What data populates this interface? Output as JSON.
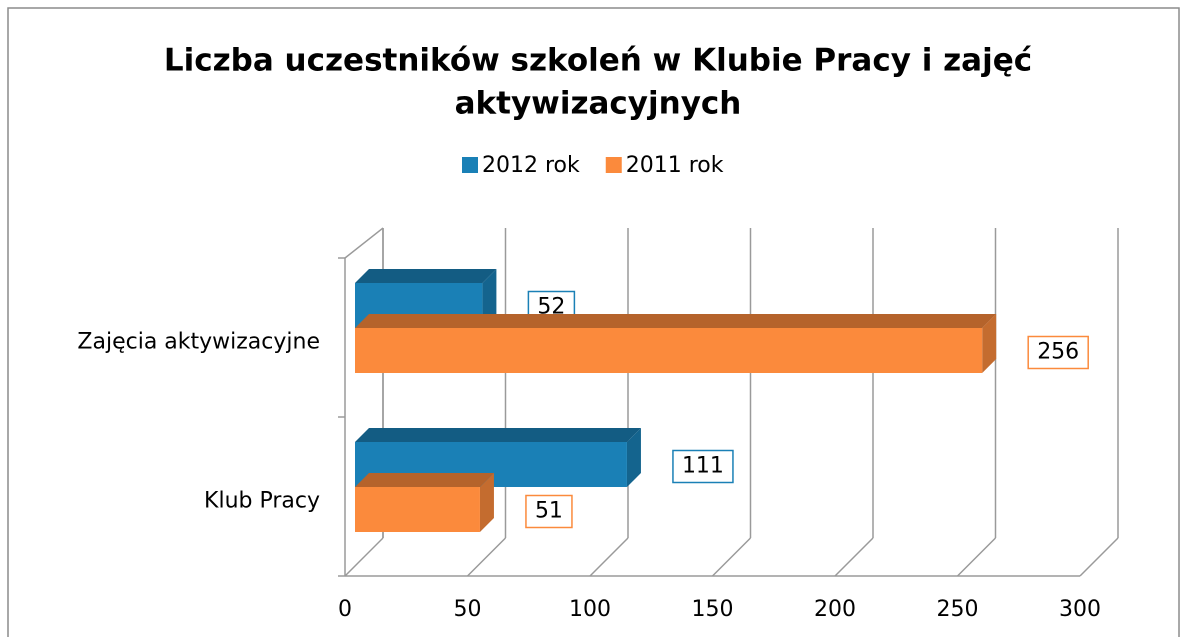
{
  "chart_data": {
    "type": "bar3d_horizontal",
    "title": "Liczba uczestników szkoleń w Klubie Pracy i zajęć aktywizacyjnych",
    "title_lines": [
      "Liczba uczestników szkoleń w Klubie Pracy i zajęć",
      "aktywizacyjnych"
    ],
    "categories": [
      "Zajęcia aktywizacyjne",
      "Klub Pracy"
    ],
    "series": [
      {
        "name": "2012 rok",
        "color": "#1a80b6",
        "values": [
          52,
          111
        ]
      },
      {
        "name": "2011 rok",
        "color": "#fb8a3c",
        "values": [
          256,
          51
        ]
      }
    ],
    "xlim": [
      0,
      300
    ],
    "xticks": [
      0,
      50,
      100,
      150,
      200,
      250,
      300
    ],
    "grid": true,
    "legend": "top"
  }
}
